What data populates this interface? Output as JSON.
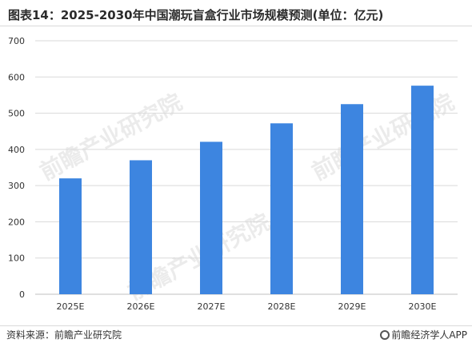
{
  "title": "图表14：2025-2030年中国潮玩盲盒行业市场规模预测(单位：亿元)",
  "source": "资料来源：前瞻产业研究院",
  "brand": "前瞻经济学人APP",
  "watermark": "前瞻产业研究院",
  "colors": {
    "bar": "#3d85e0",
    "grid": "#d9d9d9",
    "axis": "#bfbfbf",
    "text": "#333333"
  },
  "chart_data": {
    "type": "bar",
    "categories": [
      "2025E",
      "2026E",
      "2027E",
      "2028E",
      "2029E",
      "2030E"
    ],
    "series": [
      {
        "values": [
          320,
          370,
          421,
          472,
          525,
          576
        ]
      }
    ],
    "yticks": [
      "0",
      "100",
      "200",
      "300",
      "400",
      "500",
      "600",
      "700"
    ],
    "ylim": [
      0,
      700
    ],
    "grid": true,
    "legend": false
  }
}
